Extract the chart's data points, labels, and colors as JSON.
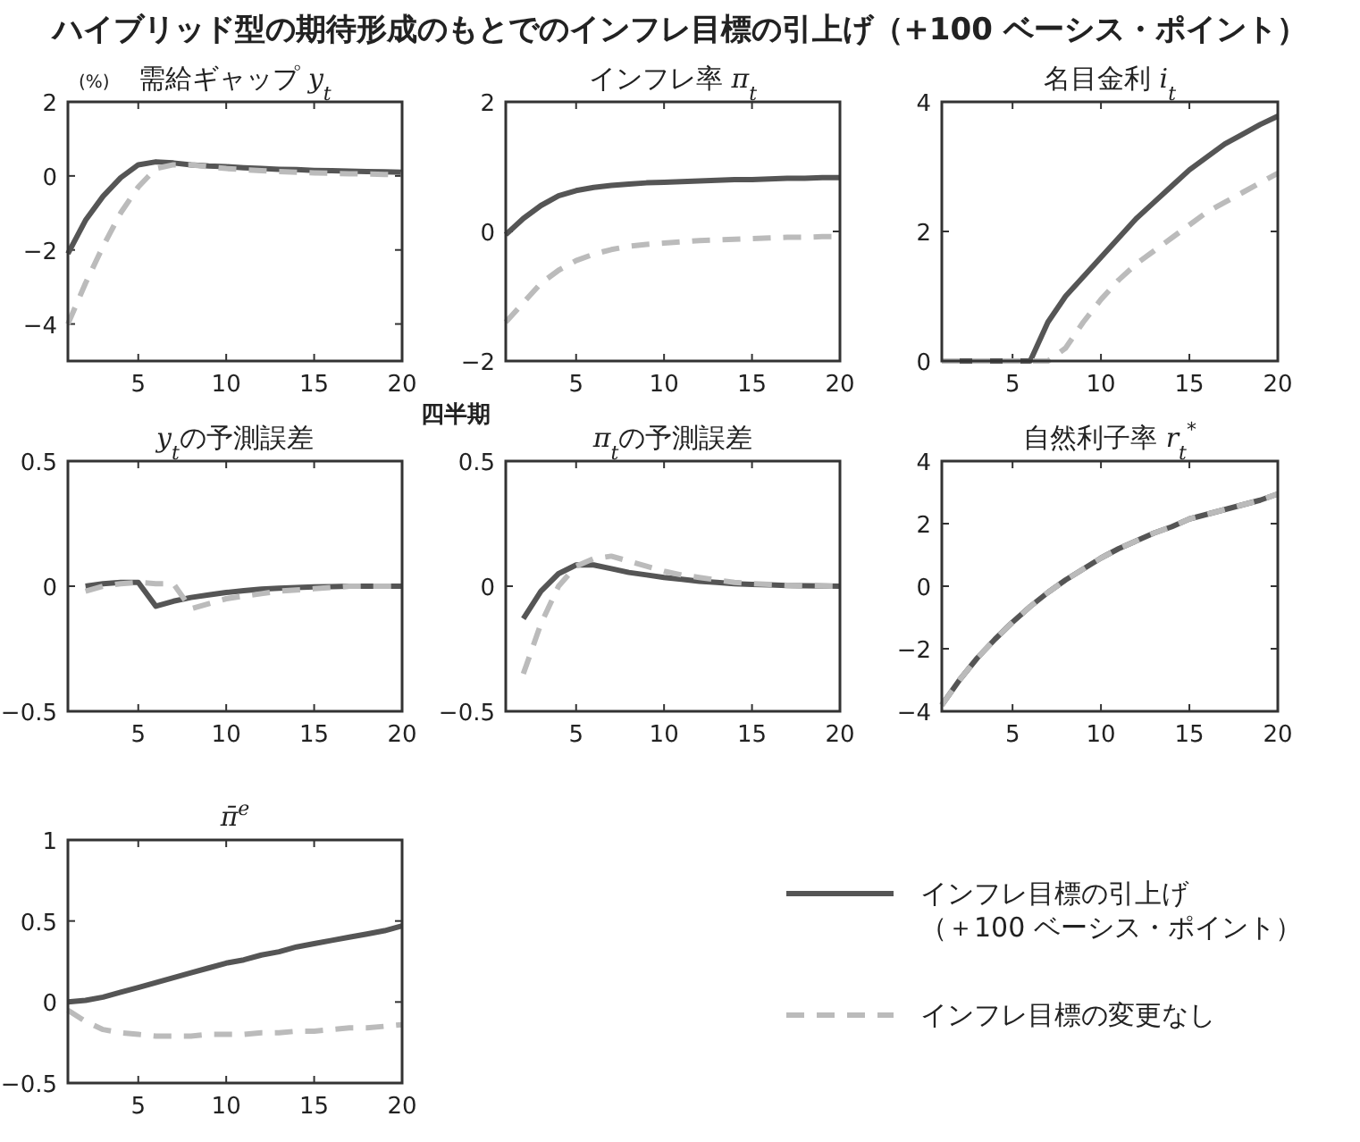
{
  "chart_data": [
    {
      "type": "line",
      "title": "需給ギャップ y$_{t}$",
      "xlabel": "四半期",
      "ylabel": "(%)",
      "annotations": [
        "ハイブリッド型の期待形成のもとでのインフレ目標の引上げ（+100 ベーシス・ポイント）"
      ],
      "x": [
        1,
        2,
        3,
        4,
        5,
        6,
        7,
        8,
        9,
        10,
        11,
        12,
        13,
        14,
        15,
        16,
        17,
        18,
        19,
        20
      ],
      "xlim": [
        1,
        20
      ],
      "xticks": [
        5,
        10,
        15,
        20
      ],
      "ylim": [
        -5,
        2
      ],
      "yticks": [
        -4,
        -2,
        0,
        2
      ],
      "grid": false,
      "marker": "none",
      "series": [
        {
          "color": "#555555",
          "line_style": "solid",
          "values": [
            -2.1,
            -1.2,
            -0.55,
            -0.05,
            0.3,
            0.38,
            0.35,
            0.3,
            0.27,
            0.25,
            0.22,
            0.2,
            0.18,
            0.17,
            0.15,
            0.14,
            0.13,
            0.12,
            0.11,
            0.1
          ]
        },
        {
          "color": "#bbbbbb",
          "line_style": "dashed",
          "values": [
            -4.0,
            -2.9,
            -1.9,
            -1.0,
            -0.3,
            0.2,
            0.3,
            0.3,
            0.25,
            0.2,
            0.17,
            0.14,
            0.12,
            0.1,
            0.08,
            0.07,
            0.06,
            0.05,
            0.04,
            0.03
          ]
        }
      ]
    },
    {
      "type": "line",
      "title": "インフレ率 π$_{t}$",
      "x": [
        1,
        2,
        3,
        4,
        5,
        6,
        7,
        8,
        9,
        10,
        11,
        12,
        13,
        14,
        15,
        16,
        17,
        18,
        19,
        20
      ],
      "xlim": [
        1,
        20
      ],
      "xticks": [
        5,
        10,
        15,
        20
      ],
      "ylim": [
        -2,
        2
      ],
      "yticks": [
        -2,
        0,
        2
      ],
      "grid": false,
      "marker": "none",
      "series": [
        {
          "color": "#555555",
          "line_style": "solid",
          "values": [
            -0.05,
            0.2,
            0.4,
            0.55,
            0.63,
            0.68,
            0.71,
            0.73,
            0.75,
            0.76,
            0.77,
            0.78,
            0.79,
            0.8,
            0.8,
            0.81,
            0.82,
            0.82,
            0.83,
            0.83
          ]
        },
        {
          "color": "#bbbbbb",
          "line_style": "dashed",
          "values": [
            -1.4,
            -1.1,
            -0.8,
            -0.6,
            -0.45,
            -0.35,
            -0.28,
            -0.23,
            -0.2,
            -0.18,
            -0.16,
            -0.14,
            -0.13,
            -0.12,
            -0.11,
            -0.1,
            -0.09,
            -0.09,
            -0.08,
            -0.08
          ]
        }
      ]
    },
    {
      "type": "line",
      "title": "名目金利 i$_{t}$",
      "x": [
        1,
        2,
        3,
        4,
        5,
        6,
        7,
        8,
        9,
        10,
        11,
        12,
        13,
        14,
        15,
        16,
        17,
        18,
        19,
        20
      ],
      "xlim": [
        1,
        20
      ],
      "xticks": [
        5,
        10,
        15,
        20
      ],
      "ylim": [
        0,
        4
      ],
      "yticks": [
        0,
        2,
        4
      ],
      "grid": false,
      "marker": "none",
      "series": [
        {
          "color": "#555555",
          "line_style": "solid",
          "values": [
            0,
            0,
            0,
            0,
            0,
            0,
            0.6,
            1.0,
            1.3,
            1.6,
            1.9,
            2.2,
            2.45,
            2.7,
            2.95,
            3.15,
            3.35,
            3.5,
            3.65,
            3.78
          ]
        },
        {
          "color": "#bbbbbb",
          "line_style": "dashed",
          "values": [
            0,
            0,
            0,
            0,
            0,
            0,
            0,
            0.2,
            0.6,
            0.95,
            1.25,
            1.5,
            1.7,
            1.9,
            2.1,
            2.3,
            2.45,
            2.6,
            2.75,
            2.9
          ]
        }
      ]
    },
    {
      "type": "line",
      "title": "y$_{t}$の予測誤差",
      "xlim": [
        1,
        20
      ],
      "xticks": [
        5,
        10,
        15,
        20
      ],
      "ylim": [
        -0.5,
        0.5
      ],
      "yticks": [
        -0.5,
        0,
        0.5
      ],
      "grid": false,
      "marker": "none",
      "series": [
        {
          "color": "#555555",
          "line_style": "solid",
          "x": [
            2,
            3,
            4,
            5,
            6,
            7,
            8,
            9,
            10,
            11,
            12,
            13,
            14,
            15,
            16,
            17,
            18,
            19,
            20
          ],
          "values": [
            0.0,
            0.01,
            0.015,
            0.015,
            -0.08,
            -0.06,
            -0.045,
            -0.035,
            -0.025,
            -0.018,
            -0.012,
            -0.008,
            -0.005,
            -0.003,
            -0.002,
            0,
            0,
            0,
            0
          ]
        },
        {
          "color": "#bbbbbb",
          "line_style": "dashed",
          "x": [
            2,
            3,
            4,
            5,
            6,
            7,
            8,
            9,
            10,
            11,
            12,
            13,
            14,
            15,
            16,
            17,
            18,
            19,
            20
          ],
          "values": [
            -0.02,
            0,
            0.01,
            0.015,
            0.01,
            0.01,
            -0.09,
            -0.07,
            -0.05,
            -0.04,
            -0.03,
            -0.02,
            -0.015,
            -0.01,
            -0.005,
            0,
            0,
            0,
            0
          ]
        }
      ]
    },
    {
      "type": "line",
      "title": "π$_{t}$の予測誤差",
      "xlim": [
        1,
        20
      ],
      "xticks": [
        5,
        10,
        15,
        20
      ],
      "ylim": [
        -0.5,
        0.5
      ],
      "yticks": [
        -0.5,
        0,
        0.5
      ],
      "grid": false,
      "marker": "none",
      "series": [
        {
          "color": "#555555",
          "line_style": "solid",
          "x": [
            2,
            3,
            4,
            5,
            6,
            7,
            8,
            9,
            10,
            11,
            12,
            13,
            14,
            15,
            16,
            17,
            18,
            19,
            20
          ],
          "values": [
            -0.13,
            -0.02,
            0.05,
            0.085,
            0.085,
            0.07,
            0.055,
            0.045,
            0.035,
            0.028,
            0.02,
            0.015,
            0.01,
            0.007,
            0.005,
            0.003,
            0.002,
            0.001,
            0
          ]
        },
        {
          "color": "#bbbbbb",
          "line_style": "dashed",
          "x": [
            2,
            3,
            4,
            5,
            6,
            7,
            8,
            9,
            10,
            11,
            12,
            13,
            14,
            15,
            16,
            17,
            18,
            19,
            20
          ],
          "values": [
            -0.35,
            -0.15,
            0,
            0.08,
            0.11,
            0.12,
            0.1,
            0.08,
            0.06,
            0.045,
            0.035,
            0.025,
            0.015,
            0.01,
            0.007,
            0.004,
            0.002,
            0.001,
            0
          ]
        }
      ]
    },
    {
      "type": "line",
      "title": "自然利子率 r$_{t}$$^{*}$",
      "x": [
        1,
        2,
        3,
        4,
        5,
        6,
        7,
        8,
        9,
        10,
        11,
        12,
        13,
        14,
        15,
        16,
        17,
        18,
        19,
        20
      ],
      "xlim": [
        1,
        20
      ],
      "xticks": [
        5,
        10,
        15,
        20
      ],
      "ylim": [
        -4,
        4
      ],
      "yticks": [
        -4,
        -2,
        0,
        2,
        4
      ],
      "grid": false,
      "marker": "none",
      "series": [
        {
          "color": "#555555",
          "line_style": "solid",
          "values": [
            -3.8,
            -3.0,
            -2.3,
            -1.7,
            -1.15,
            -0.65,
            -0.2,
            0.2,
            0.55,
            0.9,
            1.2,
            1.45,
            1.7,
            1.9,
            2.15,
            2.3,
            2.45,
            2.6,
            2.75,
            2.95
          ]
        },
        {
          "color": "#bbbbbb",
          "line_style": "dashed",
          "values": [
            -3.8,
            -3.0,
            -2.3,
            -1.7,
            -1.15,
            -0.65,
            -0.2,
            0.2,
            0.55,
            0.9,
            1.2,
            1.45,
            1.7,
            1.9,
            2.15,
            2.3,
            2.45,
            2.6,
            2.75,
            2.95
          ]
        }
      ]
    },
    {
      "type": "line",
      "title": "π̄$^{e}$",
      "x": [
        1,
        2,
        3,
        4,
        5,
        6,
        7,
        8,
        9,
        10,
        11,
        12,
        13,
        14,
        15,
        16,
        17,
        18,
        19,
        20
      ],
      "xlim": [
        1,
        20
      ],
      "xticks": [
        5,
        10,
        15,
        20
      ],
      "ylim": [
        -0.5,
        1
      ],
      "yticks": [
        -0.5,
        0,
        0.5,
        1
      ],
      "grid": false,
      "marker": "none",
      "legend": "right",
      "series": [
        {
          "name": "インフレ目標の引上げ（＋100 ベーシス・ポイント）",
          "color": "#555555",
          "line_style": "solid",
          "values": [
            0.0,
            0.01,
            0.03,
            0.06,
            0.09,
            0.12,
            0.15,
            0.18,
            0.21,
            0.24,
            0.26,
            0.29,
            0.31,
            0.34,
            0.36,
            0.38,
            0.4,
            0.42,
            0.44,
            0.47
          ]
        },
        {
          "name": "インフレ目標の変更なし",
          "color": "#bbbbbb",
          "line_style": "dashed",
          "values": [
            -0.05,
            -0.12,
            -0.17,
            -0.19,
            -0.2,
            -0.21,
            -0.21,
            -0.21,
            -0.2,
            -0.2,
            -0.2,
            -0.19,
            -0.19,
            -0.18,
            -0.18,
            -0.17,
            -0.16,
            -0.16,
            -0.15,
            -0.14
          ]
        }
      ]
    }
  ]
}
